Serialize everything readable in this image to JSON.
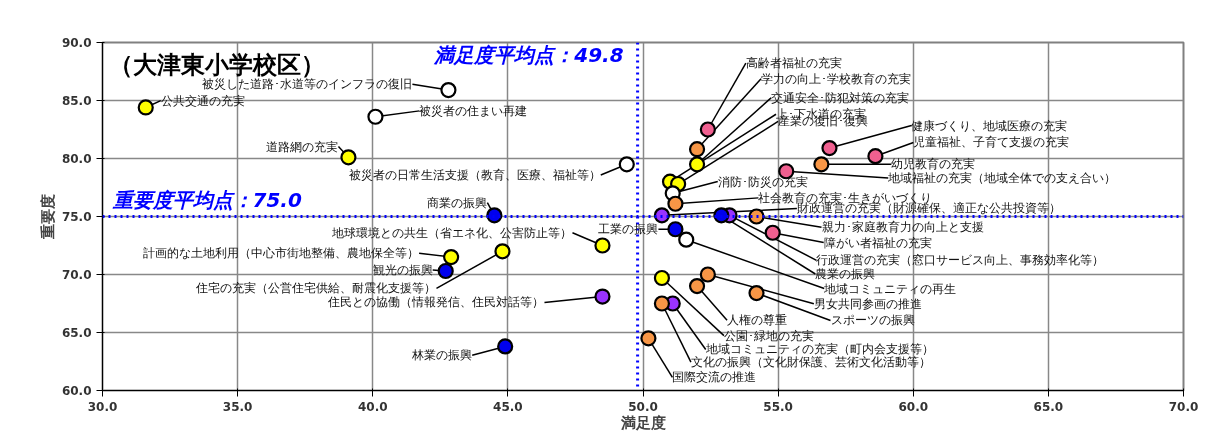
{
  "chart_data": {
    "type": "scatter",
    "title": "（大津東小学校区）",
    "xlabel": "満足度",
    "ylabel": "重要度",
    "marker": "circle",
    "grid": true,
    "xlim": [
      30,
      70
    ],
    "ylim": [
      60,
      90
    ],
    "xticks": [
      {
        "value": 30,
        "label": "30.0"
      },
      {
        "value": 35,
        "label": "35.0"
      },
      {
        "value": 40,
        "label": "40.0"
      },
      {
        "value": 45,
        "label": "45.0"
      },
      {
        "value": 50,
        "label": "50.0"
      },
      {
        "value": 55,
        "label": "55.0"
      },
      {
        "value": 60,
        "label": "60.0"
      },
      {
        "value": 65,
        "label": "65.0"
      },
      {
        "value": 70,
        "label": "70.0"
      }
    ],
    "yticks": [
      {
        "value": 60,
        "label": "60.0"
      },
      {
        "value": 65,
        "label": "65.0"
      },
      {
        "value": 70,
        "label": "70.0"
      },
      {
        "value": 75,
        "label": "75.0"
      },
      {
        "value": 80,
        "label": "80.0"
      },
      {
        "value": 85,
        "label": "85.0"
      },
      {
        "value": 90,
        "label": "90.0"
      }
    ],
    "ref_lines": [
      {
        "axis": "x",
        "value": 49.8,
        "label": "満足度平均点：49.8",
        "color": "#0000ff",
        "line_style": "dotted"
      },
      {
        "axis": "y",
        "value": 75.0,
        "label": "重要度平均点：75.0",
        "color": "#0000ff",
        "line_style": "dotted"
      }
    ],
    "x": [
      31.6,
      42.8,
      40.1,
      39.1,
      49.4,
      44.5,
      48.5,
      42.9,
      42.7,
      44.8,
      48.5,
      44.9,
      52.4,
      52.0,
      52.0,
      51.0,
      51.3,
      51.1,
      56.9,
      58.6,
      56.6,
      55.3,
      51.2,
      50.7,
      54.2,
      54.8,
      53.2,
      52.9,
      51.2,
      51.6,
      52.4,
      52.0,
      54.2,
      50.7,
      51.1,
      50.7,
      50.2
    ],
    "values": [
      84.4,
      85.9,
      83.6,
      80.1,
      79.5,
      75.1,
      72.5,
      71.5,
      70.3,
      72.0,
      68.1,
      63.8,
      82.5,
      80.8,
      79.5,
      78.0,
      77.8,
      77.0,
      80.9,
      80.2,
      79.5,
      78.9,
      76.1,
      75.1,
      75.0,
      73.6,
      75.1,
      75.1,
      73.9,
      73.0,
      70.0,
      69.0,
      68.4,
      69.7,
      67.5,
      67.5,
      64.5
    ],
    "colors": [
      "#ffff00",
      "#ffffff",
      "#ffffff",
      "#ffff00",
      "#ffffff",
      "#0000ee",
      "#ffff00",
      "#ffff00",
      "#0000ee",
      "#ffff00",
      "#9933ff",
      "#0000ee",
      "#f06090",
      "#f79646",
      "#ffff00",
      "#ffff00",
      "#ffff00",
      "#ffffff",
      "#f06090",
      "#f06090",
      "#f79646",
      "#f06090",
      "#f79646",
      "#9933ff",
      "#f79646",
      "#f06090",
      "#9933ff",
      "#0000ee",
      "#0000ee",
      "#ffffff",
      "#f79646",
      "#f79646",
      "#f79646",
      "#ffff00",
      "#9933ff",
      "#f79646",
      "#f79646"
    ],
    "annotations": [
      {
        "text": "公共交通の充実",
        "x": 31.6,
        "y": 84.4
      },
      {
        "text": "被災した道路･水道等のインフラの復旧",
        "x": 42.8,
        "y": 85.9
      },
      {
        "text": "被災者の住まい再建",
        "x": 40.1,
        "y": 83.6
      },
      {
        "text": "道路網の充実",
        "x": 39.1,
        "y": 80.1
      },
      {
        "text": "被災者の日常生活支援（教育、医療、福祉等）",
        "x": 49.4,
        "y": 79.5
      },
      {
        "text": "商業の振興",
        "x": 44.5,
        "y": 75.1
      },
      {
        "text": "地球環境との共生（省エネ化、公害防止等）",
        "x": 48.5,
        "y": 72.5
      },
      {
        "text": "計画的な土地利用（中心市街地整備、農地保全等）",
        "x": 42.9,
        "y": 71.5
      },
      {
        "text": "観光の振興",
        "x": 42.7,
        "y": 70.3
      },
      {
        "text": "住宅の充実（公営住宅供給、耐震化支援等）",
        "x": 44.8,
        "y": 72.0
      },
      {
        "text": "住民との協働（情報発信、住民対話等）",
        "x": 48.5,
        "y": 68.1
      },
      {
        "text": "林業の振興",
        "x": 44.9,
        "y": 63.8
      },
      {
        "text": "高齢者福祉の充実",
        "x": 52.4,
        "y": 82.5
      },
      {
        "text": "学力の向上･学校教育の充実",
        "x": 52.0,
        "y": 80.8
      },
      {
        "text": "交通安全･防犯対策の充実",
        "x": 52.0,
        "y": 79.5
      },
      {
        "text": "上･下水道の充実",
        "x": 51.0,
        "y": 78.0
      },
      {
        "text": "産業の復旧･復興",
        "x": 51.3,
        "y": 77.8
      },
      {
        "text": "消防･防災の充実",
        "x": 51.1,
        "y": 77.0
      },
      {
        "text": "健康づくり、地域医療の充実",
        "x": 56.9,
        "y": 80.9
      },
      {
        "text": "児童福祉、子育て支援の充実",
        "x": 58.6,
        "y": 80.2
      },
      {
        "text": "幼児教育の充実",
        "x": 56.6,
        "y": 79.5
      },
      {
        "text": "地域福祉の充実（地域全体での支え合い）",
        "x": 55.3,
        "y": 78.9
      },
      {
        "text": "社会教育の充実･生きがいづくり",
        "x": 51.2,
        "y": 76.1
      },
      {
        "text": "財政運営の充実（財源確保、適正な公共投資等）",
        "x": 50.7,
        "y": 75.1
      },
      {
        "text": "親力･家庭教育力の向上と支援",
        "x": 54.2,
        "y": 75.0
      },
      {
        "text": "障がい者福祉の充実",
        "x": 54.8,
        "y": 73.6
      },
      {
        "text": "行政運営の充実（窓口サービス向上、事務効率化等）",
        "x": 53.2,
        "y": 75.1
      },
      {
        "text": "農業の振興",
        "x": 52.9,
        "y": 75.1
      },
      {
        "text": "工業の振興",
        "x": 51.2,
        "y": 73.9
      },
      {
        "text": "地域コミュニティの再生",
        "x": 51.6,
        "y": 73.0
      },
      {
        "text": "男女共同参画の推進",
        "x": 52.4,
        "y": 70.0
      },
      {
        "text": "人権の尊重",
        "x": 52.0,
        "y": 69.0
      },
      {
        "text": "スポーツの振興",
        "x": 54.2,
        "y": 68.4
      },
      {
        "text": "公園･緑地の充実",
        "x": 50.7,
        "y": 69.7
      },
      {
        "text": "地域コミュニティの充実（町内会支援等）",
        "x": 51.1,
        "y": 67.5
      },
      {
        "text": "文化の振興（文化財保護、芸術文化活動等）",
        "x": 50.7,
        "y": 67.5
      },
      {
        "text": "国際交流の推進",
        "x": 50.2,
        "y": 64.5
      }
    ]
  }
}
